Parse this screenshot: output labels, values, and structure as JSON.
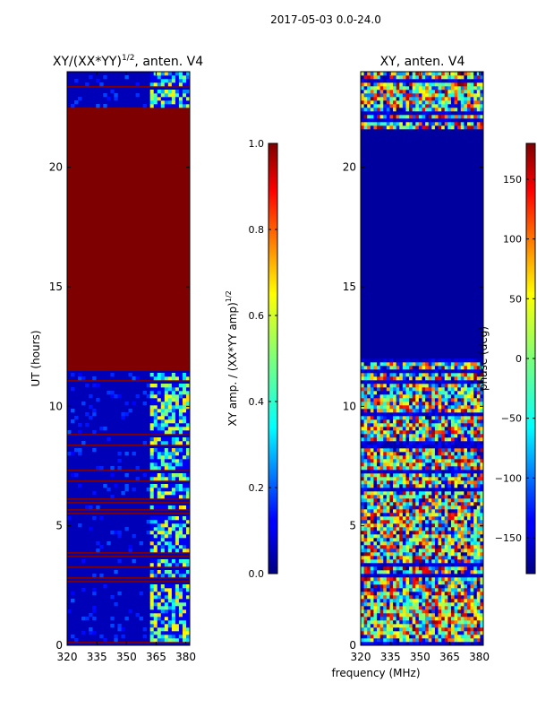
{
  "figure_title": "2017-05-03 0.0-24.0",
  "chart_data": [
    {
      "type": "heatmap",
      "title_main": "XY/(XX*YY)",
      "title_sup": "1/2",
      "title_tail": ", anten. V4",
      "xlabel": "",
      "ylabel": "UT (hours)",
      "xlim": [
        320,
        382
      ],
      "ylim": [
        0,
        24
      ],
      "xticks": [
        320,
        335,
        350,
        365,
        380
      ],
      "yticks": [
        0,
        5,
        10,
        15,
        20
      ],
      "colorbar": {
        "label_main": "XY amp. / (XX*YY amp)",
        "label_sup": "1/2",
        "range": [
          0.0,
          1.0
        ],
        "ticks": [
          "0.0",
          "0.2",
          "0.4",
          "0.6",
          "0.8",
          "1.0"
        ],
        "tick_values": [
          0.0,
          0.2,
          0.4,
          0.6,
          0.8,
          1.0
        ]
      },
      "data_summary": {
        "saturated_block_ut": [
          11.5,
          22.5
        ],
        "saturated_value": 1.0,
        "background_value": 0.05,
        "rfi_band_mhz": [
          361,
          381
        ],
        "rfi_value_range": [
          0.2,
          0.7
        ]
      }
    },
    {
      "type": "heatmap",
      "title": "XY, anten. V4",
      "xlabel": "frequency (MHz)",
      "ylabel": "",
      "xlim": [
        320,
        382
      ],
      "ylim": [
        0,
        24
      ],
      "xticks": [
        320,
        335,
        350,
        365,
        380
      ],
      "yticks": [
        0,
        5,
        10,
        15,
        20
      ],
      "colorbar": {
        "label": "phase (deg)",
        "range": [
          -180,
          180
        ],
        "ticks": [
          "−150",
          "−100",
          "−50",
          "0",
          "50",
          "100",
          "150"
        ],
        "tick_values": [
          -150,
          -100,
          -50,
          0,
          50,
          100,
          150
        ]
      },
      "data_summary": {
        "flat_block_ut": [
          12.0,
          21.5
        ],
        "flat_value": -170,
        "phase_range": [
          -180,
          180
        ]
      }
    }
  ],
  "colors": {
    "dark_blue": "#000080",
    "dark_red": "#800000"
  }
}
